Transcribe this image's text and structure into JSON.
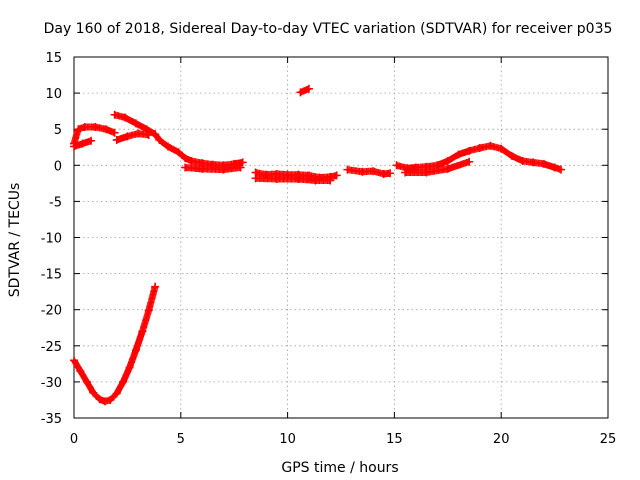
{
  "chart_data": {
    "type": "scatter",
    "title": "Day 160 of 2018, Sidereal Day-to-day VTEC variation (SDTVAR) for receiver p035",
    "xlabel": "GPS time / hours",
    "ylabel": "SDTVAR / TECUs",
    "xlim": [
      0,
      25
    ],
    "ylim": [
      -35,
      15
    ],
    "xticks": [
      0,
      5,
      10,
      15,
      20,
      25
    ],
    "yticks": [
      15,
      10,
      5,
      0,
      -5,
      -10,
      -15,
      -20,
      -25,
      -30,
      -35
    ],
    "grid": true,
    "marker": "+",
    "color": "#ff0000",
    "series": [
      {
        "name": "SDTVAR",
        "segments": [
          [
            [
              0.0,
              3.0
            ],
            [
              0.2,
              5.0
            ],
            [
              0.5,
              5.3
            ],
            [
              1.0,
              5.3
            ],
            [
              1.5,
              5.0
            ],
            [
              1.9,
              4.5
            ]
          ],
          [
            [
              0.0,
              2.6
            ],
            [
              0.4,
              3.0
            ],
            [
              0.8,
              3.4
            ]
          ],
          [
            [
              1.9,
              7.0
            ],
            [
              2.4,
              6.6
            ],
            [
              2.9,
              5.8
            ],
            [
              3.4,
              5.0
            ],
            [
              3.8,
              4.3
            ],
            [
              4.0,
              3.5
            ],
            [
              4.4,
              2.6
            ],
            [
              4.9,
              1.8
            ],
            [
              5.2,
              1.0
            ],
            [
              5.5,
              0.6
            ],
            [
              6.0,
              0.3
            ],
            [
              6.5,
              0.1
            ],
            [
              7.0,
              0.0
            ],
            [
              7.5,
              0.2
            ],
            [
              7.9,
              0.4
            ]
          ],
          [
            [
              2.0,
              3.5
            ],
            [
              2.5,
              4.0
            ],
            [
              3.0,
              4.4
            ],
            [
              3.5,
              4.2
            ]
          ],
          [
            [
              5.2,
              -0.3
            ],
            [
              6.0,
              -0.5
            ],
            [
              7.0,
              -0.6
            ],
            [
              7.8,
              -0.3
            ]
          ],
          [
            [
              8.5,
              -1.0
            ],
            [
              9.0,
              -1.3
            ],
            [
              9.5,
              -1.2
            ],
            [
              10.0,
              -1.3
            ],
            [
              10.5,
              -1.3
            ],
            [
              11.0,
              -1.4
            ],
            [
              11.5,
              -1.7
            ],
            [
              12.0,
              -1.6
            ],
            [
              12.3,
              -1.4
            ]
          ],
          [
            [
              8.5,
              -1.8
            ],
            [
              9.5,
              -1.9
            ],
            [
              10.5,
              -1.9
            ],
            [
              11.3,
              -2.1
            ],
            [
              12.0,
              -2.1
            ]
          ],
          [
            [
              10.6,
              10.1
            ],
            [
              11.0,
              10.6
            ]
          ],
          [
            [
              12.8,
              -0.6
            ],
            [
              13.5,
              -0.9
            ],
            [
              14.0,
              -0.8
            ],
            [
              14.5,
              -1.2
            ],
            [
              14.8,
              -1.1
            ]
          ],
          [
            [
              15.1,
              0.0
            ],
            [
              15.6,
              -0.4
            ],
            [
              16.0,
              -0.3
            ],
            [
              16.5,
              -0.2
            ],
            [
              17.0,
              0.0
            ],
            [
              17.5,
              0.6
            ],
            [
              18.0,
              1.5
            ],
            [
              18.5,
              2.0
            ],
            [
              19.0,
              2.4
            ],
            [
              19.5,
              2.7
            ],
            [
              20.0,
              2.3
            ],
            [
              20.5,
              1.3
            ],
            [
              21.0,
              0.6
            ],
            [
              21.5,
              0.4
            ],
            [
              22.0,
              0.2
            ],
            [
              22.5,
              -0.3
            ],
            [
              22.8,
              -0.6
            ]
          ],
          [
            [
              15.5,
              -1.0
            ],
            [
              16.5,
              -1.0
            ],
            [
              17.5,
              -0.5
            ],
            [
              18.5,
              0.5
            ]
          ],
          [
            [
              0.0,
              -27.0
            ],
            [
              0.3,
              -28.5
            ],
            [
              0.6,
              -30.0
            ],
            [
              0.9,
              -31.5
            ],
            [
              1.2,
              -32.4
            ],
            [
              1.45,
              -32.7
            ],
            [
              1.7,
              -32.5
            ],
            [
              2.0,
              -31.6
            ],
            [
              2.3,
              -30.0
            ],
            [
              2.6,
              -28.0
            ],
            [
              2.9,
              -25.6
            ],
            [
              3.2,
              -23.0
            ],
            [
              3.5,
              -20.1
            ],
            [
              3.8,
              -16.8
            ]
          ]
        ]
      }
    ]
  }
}
